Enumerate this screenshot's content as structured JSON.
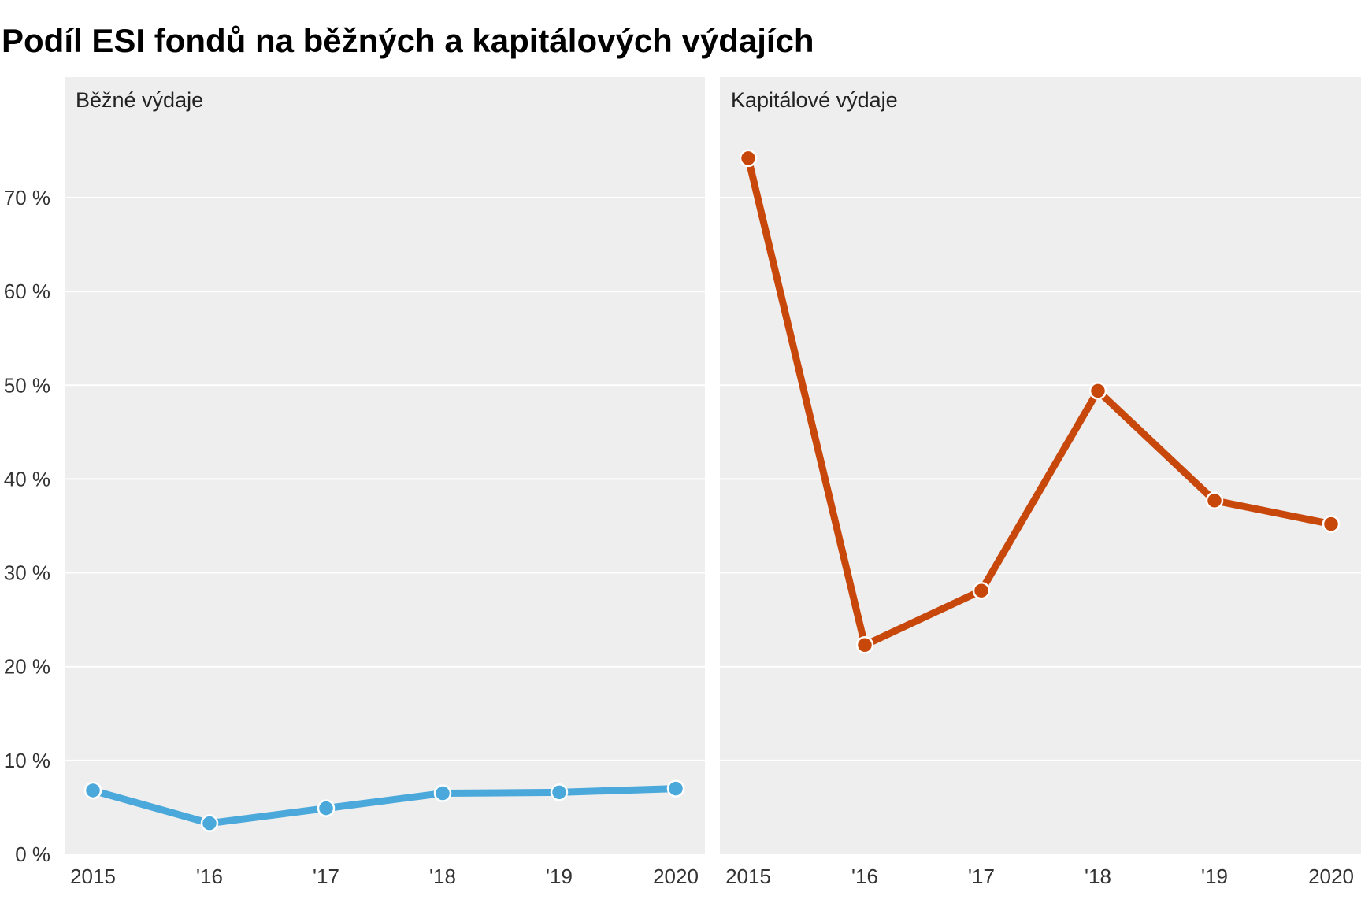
{
  "title": "Podíl ESI fondů na běžných a kapitálových výdajích",
  "chart_data": [
    {
      "type": "line",
      "title": "Běžné výdaje",
      "categories": [
        "2015",
        "'16",
        "'17",
        "'18",
        "'19",
        "2020"
      ],
      "series": [
        {
          "values": [
            6.8,
            3.3,
            4.9,
            6.5,
            6.6,
            7.0
          ],
          "color": "#4aa8db"
        }
      ],
      "y_unit": "%",
      "ylim": [
        0,
        80
      ],
      "yticks": [
        0,
        10,
        20,
        30,
        40,
        50,
        60,
        70
      ],
      "ytick_labels": [
        "0 %",
        "10 %",
        "20 %",
        "30 %",
        "40 %",
        "50 %",
        "60 %",
        "70 %"
      ],
      "grid": true,
      "panel_background": "#eeeeee"
    },
    {
      "type": "line",
      "title": "Kapitálové výdaje",
      "categories": [
        "2015",
        "'16",
        "'17",
        "'18",
        "'19",
        "2020"
      ],
      "series": [
        {
          "values": [
            74.2,
            22.3,
            28.1,
            49.4,
            37.7,
            35.2
          ],
          "color": "#c8470b"
        }
      ],
      "y_unit": "%",
      "ylim": [
        0,
        80
      ],
      "yticks": [
        0,
        10,
        20,
        30,
        40,
        50,
        60,
        70
      ],
      "grid": true,
      "panel_background": "#eeeeee"
    }
  ]
}
